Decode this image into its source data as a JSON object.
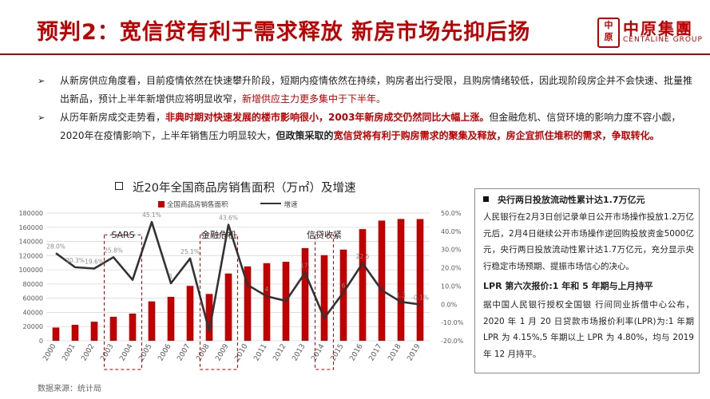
{
  "slide": {
    "title": "预判2：宽信贷有利于需求释放  新房市场先抑后扬",
    "logo": {
      "seal_char_1": "中",
      "seal_char_2": "原",
      "cn": "中原集團",
      "en": "CENTALINE GROUP"
    },
    "bullet_1": {
      "p1": "从新房供应角度看，目前疫情依然在快速攀升阶段，短期内疫情依然在持续，购房者出行受限，且购房情绪较低，因此现阶段房企并不会快速、批量推出新品，预计上半年新增供应将明显收窄，",
      "p2": "新增供应主力更多集中于下半年。"
    },
    "bullet_2": {
      "p1": "从历年新房成交走势看，",
      "p2": "非典时期对快速发展的楼市影响很小，2003年新房成交仍然同比大幅上涨。",
      "p3": "但金融危机、信贷环境的影响力度不容小觑，2020年在疫情影响下，上半年销售压力明显较大，",
      "p4": "但政策采取的",
      "p5": "宽信贷将有利于购房需求的聚集及释放，房企宜抓住堆积的需求，争取转化。"
    },
    "source": "数据来源：统计局",
    "panel": {
      "heading_1": "央行两日投放流动性累计达1.7万亿元",
      "body_1": "人民银行在2月3日创记录单日公开市场操作投放1.2万亿元后，2月4日继续公开市场操作逆回购投放资金5000亿元，央行两日投放流动性累计达1.7万亿元，充分显示央行稳定市场预期、提振市场信心的决心。",
      "heading_2": "LPR 第六次报价:1 年和 5 年期与上月持平",
      "body_2": "据中国人民银行授权全国银 行间同业拆借中心公布，2020 年 1 月 20 日贷款市场报价利率(LPR)为:1 年期 LPR 为 4.15%,5 年期以上 LPR 为 4.80%，均与 2019 年 12 月持平。"
    }
  },
  "colors": {
    "accent": "#c00000",
    "line": "#333333",
    "grid": "#d9d9d9"
  },
  "chart_data": {
    "type": "bar",
    "title": "近20年全国商品房销售面积（万㎡）及增速",
    "categories": [
      "2000",
      "2001",
      "2002",
      "2003",
      "2004",
      "2005",
      "2006",
      "2007",
      "2008",
      "2009",
      "2010",
      "2011",
      "2012",
      "2013",
      "2014",
      "2015",
      "2016",
      "2017",
      "2018",
      "2019"
    ],
    "series": [
      {
        "name": "全国商品房销售面积",
        "kind": "bar",
        "axis": "left",
        "values": [
          18637,
          22412,
          26808,
          33718,
          38232,
          55486,
          61857,
          77355,
          65970,
          94755,
          104765,
          109366,
          111304,
          130551,
          120649,
          128495,
          157349,
          169408,
          171654,
          171558
        ]
      },
      {
        "name": "增速",
        "kind": "line",
        "axis": "right",
        "values": [
          28.0,
          20.3,
          19.6,
          25.8,
          13.4,
          45.1,
          11.5,
          25.1,
          -14.7,
          43.6,
          10.6,
          4.4,
          1.8,
          17.3,
          -7.6,
          6.5,
          22.5,
          7.7,
          1.3,
          -0.1
        ],
        "labels": [
          "28.0%",
          "20.3%",
          "19.6%",
          "25.8%",
          "",
          "45.1%",
          "1",
          "25.1%",
          "",
          "43.6%",
          "",
          "4",
          "",
          "17.",
          "",
          "6",
          "22.5",
          "",
          "1.3",
          "-0.1%"
        ]
      }
    ],
    "left_axis": {
      "min": 0,
      "max": 180000,
      "ticks": [
        "0",
        "20000",
        "40000",
        "60000",
        "80000",
        "100000",
        "120000",
        "140000",
        "160000",
        "180000"
      ]
    },
    "right_axis": {
      "min": -20,
      "max": 50,
      "ticks": [
        "-20.0%",
        "-10.0%",
        "0.0%",
        "10.0%",
        "20.0%",
        "30.0%",
        "40.0%",
        "50.0%"
      ]
    },
    "annotations": [
      {
        "label": "SARS",
        "span": [
          "2003",
          "2004"
        ]
      },
      {
        "label": "金融危机",
        "span": [
          "2008",
          "2009"
        ]
      },
      {
        "label": "信贷收紧",
        "span": [
          "2014",
          "2014"
        ]
      }
    ],
    "grid": true,
    "legend": "top"
  }
}
